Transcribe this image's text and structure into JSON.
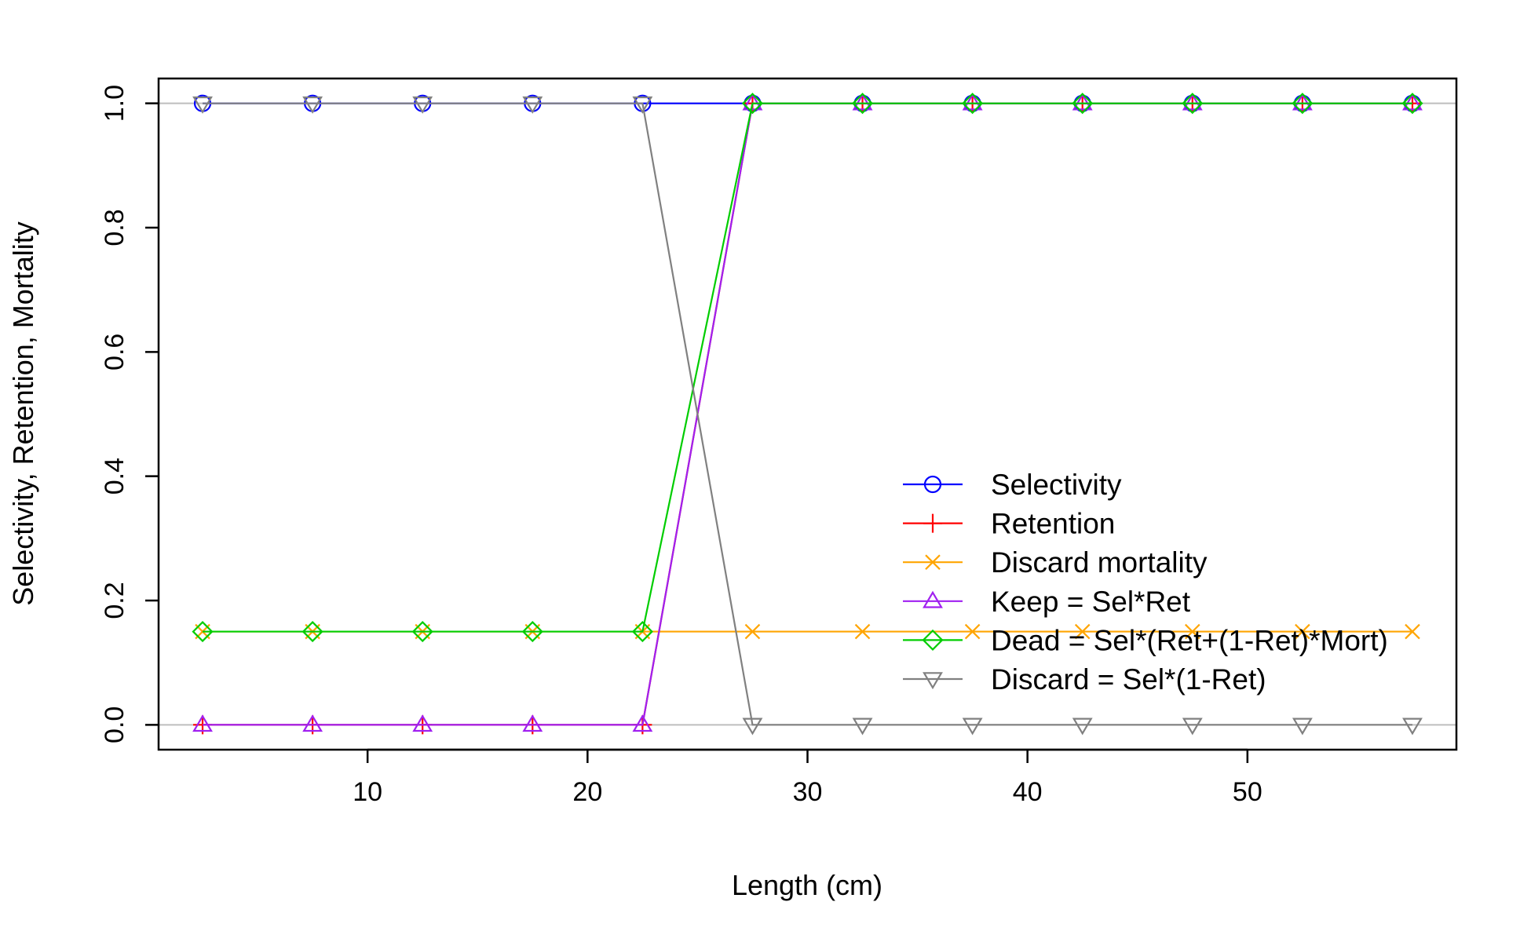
{
  "chart_data": {
    "type": "line",
    "title": "",
    "xlabel": "Length (cm)",
    "ylabel": "Selectivity, Retention, Mortality",
    "xlim": [
      0.5,
      59.5
    ],
    "ylim": [
      -0.04,
      1.04
    ],
    "x_ticks": [
      10,
      20,
      30,
      40,
      50
    ],
    "y_ticks": [
      0.0,
      0.2,
      0.4,
      0.6,
      0.8,
      1.0
    ],
    "x_tick_labels": [
      "10",
      "20",
      "30",
      "40",
      "50"
    ],
    "y_tick_labels": [
      "0.0",
      "0.2",
      "0.4",
      "0.6",
      "0.8",
      "1.0"
    ],
    "reference_lines": [
      0,
      1
    ],
    "reference_line_color": "#bebebe",
    "legend_position": "bottom-right",
    "x": [
      2.5,
      7.5,
      12.5,
      17.5,
      22.5,
      27.5,
      32.5,
      37.5,
      42.5,
      47.5,
      52.5,
      57.5
    ],
    "series": [
      {
        "name": "Selectivity",
        "color": "#0000ff",
        "marker": "circle",
        "values": [
          1,
          1,
          1,
          1,
          1,
          1,
          1,
          1,
          1,
          1,
          1,
          1
        ]
      },
      {
        "name": "Retention",
        "color": "#ff0000",
        "marker": "plus",
        "values": [
          0,
          0,
          0,
          0,
          0,
          1,
          1,
          1,
          1,
          1,
          1,
          1
        ]
      },
      {
        "name": "Discard mortality",
        "color": "#ffa500",
        "marker": "cross",
        "values": [
          0.15,
          0.15,
          0.15,
          0.15,
          0.15,
          0.15,
          0.15,
          0.15,
          0.15,
          0.15,
          0.15,
          0.15
        ]
      },
      {
        "name": "Keep = Sel*Ret",
        "color": "#a020f0",
        "marker": "triangle-up",
        "values": [
          0,
          0,
          0,
          0,
          0,
          1,
          1,
          1,
          1,
          1,
          1,
          1
        ]
      },
      {
        "name": "Dead = Sel*(Ret+(1-Ret)*Mort)",
        "color": "#00cd00",
        "marker": "diamond",
        "values": [
          0.15,
          0.15,
          0.15,
          0.15,
          0.15,
          1,
          1,
          1,
          1,
          1,
          1,
          1
        ]
      },
      {
        "name": "Discard = Sel*(1-Ret)",
        "color": "#808080",
        "marker": "triangle-down",
        "values": [
          1,
          1,
          1,
          1,
          1,
          0,
          0,
          0,
          0,
          0,
          0,
          0
        ]
      }
    ]
  }
}
